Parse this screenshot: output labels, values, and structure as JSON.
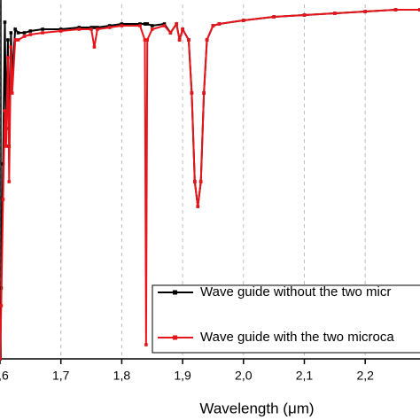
{
  "chart_data": {
    "type": "line",
    "x_label": "Wavelength (μm)",
    "x": [
      1.6,
      1.602,
      1.605,
      1.608,
      1.61,
      1.613,
      1.615,
      1.618,
      1.62,
      1.625,
      1.63,
      1.64,
      1.65,
      1.67,
      1.7,
      1.73,
      1.75,
      1.755,
      1.76,
      1.78,
      1.8,
      1.83,
      1.838,
      1.84,
      1.842,
      1.85,
      1.87,
      1.88,
      1.89,
      1.895,
      1.9,
      1.91,
      1.915,
      1.92,
      1.925,
      1.93,
      1.935,
      1.94,
      1.95,
      1.96,
      2.0,
      2.05,
      2.1,
      2.15,
      2.2,
      2.25,
      2.29
    ],
    "series": [
      {
        "name": "Wave guide without the two micr",
        "color": "#000000",
        "values": [
          0.0,
          0.2,
          0.55,
          0.95,
          0.65,
          0.9,
          0.6,
          0.92,
          0.8,
          0.93,
          0.92,
          0.92,
          0.925,
          0.93,
          0.93,
          0.935,
          0.935,
          0.935,
          0.935,
          0.94,
          0.945,
          0.945,
          0.945,
          0.945,
          0.945,
          0.94,
          0.945,
          0.92,
          0.945,
          0.9,
          0.93,
          0.9,
          0.75,
          0.5,
          0.43,
          0.5,
          0.75,
          0.9,
          0.94,
          0.945,
          0.955,
          0.965,
          0.97,
          0.975,
          0.98,
          0.985,
          0.985
        ]
      },
      {
        "name": "Wave guide with the two microca",
        "color": "#e8141c",
        "values": [
          0.0,
          0.15,
          0.45,
          0.7,
          0.6,
          0.85,
          0.5,
          0.88,
          0.75,
          0.9,
          0.9,
          0.91,
          0.915,
          0.92,
          0.925,
          0.93,
          0.93,
          0.88,
          0.93,
          0.935,
          0.94,
          0.94,
          0.9,
          0.04,
          0.9,
          0.93,
          0.94,
          0.92,
          0.945,
          0.9,
          0.93,
          0.9,
          0.75,
          0.5,
          0.43,
          0.5,
          0.75,
          0.9,
          0.94,
          0.945,
          0.955,
          0.965,
          0.97,
          0.975,
          0.98,
          0.985,
          0.985
        ]
      }
    ],
    "xlim": [
      1.6,
      2.29
    ],
    "xticks": [
      {
        "value": 1.6,
        "label": "1,6"
      },
      {
        "value": 1.7,
        "label": "1,7"
      },
      {
        "value": 1.8,
        "label": "1,8"
      },
      {
        "value": 1.9,
        "label": "1,9"
      },
      {
        "value": 2.0,
        "label": "2,0"
      },
      {
        "value": 2.1,
        "label": "2,1"
      },
      {
        "value": 2.2,
        "label": "2,2"
      }
    ],
    "ylim": [
      0,
      1
    ],
    "grid": true,
    "legend": "lower right"
  }
}
